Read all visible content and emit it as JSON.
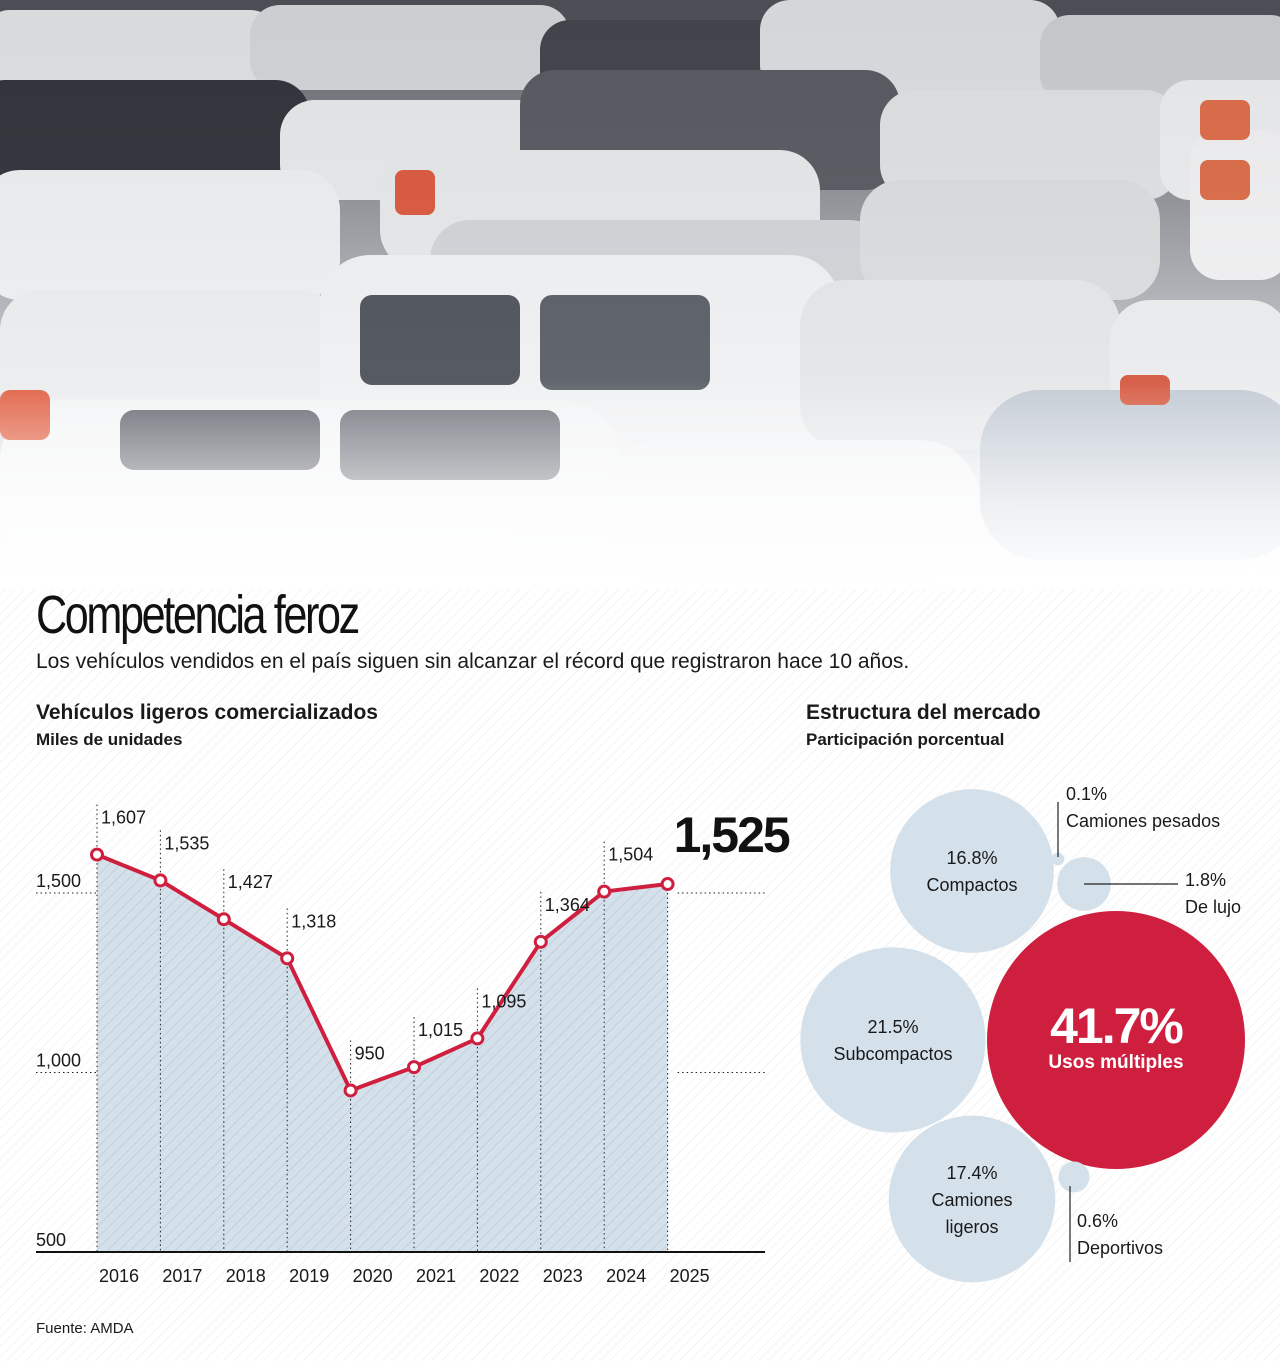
{
  "header": {
    "title": "Competencia feroz",
    "subtitle": "Los vehículos vendidos en el país siguen sin alcanzar el récord que registraron hace 10 años."
  },
  "line_chart": {
    "title": "Vehículos ligeros comercializados",
    "subtitle": "Miles de unidades"
  },
  "bubble_chart": {
    "title": "Estructura del mercado",
    "subtitle": "Participación porcentual"
  },
  "source": "Fuente: AMDA",
  "colors": {
    "line": "#cf1f3f",
    "area_fill": "#d4e0ea",
    "bubble": "#d4e0ea",
    "highlight_bubble": "#cf1f3f"
  },
  "chart_data": [
    {
      "type": "area",
      "title": "Vehículos ligeros comercializados",
      "ylabel": "Miles de unidades",
      "x": [
        "2016",
        "2017",
        "2018",
        "2019",
        "2020",
        "2021",
        "2022",
        "2023",
        "2024",
        "2025"
      ],
      "values": [
        1607,
        1535,
        1427,
        1318,
        950,
        1015,
        1095,
        1364,
        1504,
        1525
      ],
      "labels": [
        "1,607",
        "1,535",
        "1,427",
        "1,318",
        "950",
        "1,015",
        "1,095",
        "1,364",
        "1,504",
        "1,525"
      ],
      "yticks": [
        500,
        1000,
        1500
      ],
      "ytick_labels": [
        "500",
        "1,000",
        "1,500"
      ],
      "ylim": [
        500,
        1700
      ],
      "grid": false,
      "highlight_last": true
    },
    {
      "type": "bubble",
      "title": "Estructura del mercado",
      "ylabel": "Participación porcentual",
      "categories": [
        "Usos múltiples",
        "Subcompactos",
        "Camiones ligeros",
        "Compactos",
        "De lujo",
        "Deportivos",
        "Camiones pesados"
      ],
      "values": [
        41.7,
        21.5,
        17.4,
        16.8,
        1.8,
        0.6,
        0.1
      ],
      "value_labels": [
        "41.7%",
        "21.5%",
        "17.4%",
        "16.8%",
        "1.8%",
        "0.6%",
        "0.1%"
      ],
      "label_lines": [
        [
          "Usos múltiples"
        ],
        [
          "Subcompactos"
        ],
        [
          "Camiones",
          "ligeros"
        ],
        [
          "Compactos"
        ],
        [
          "De lujo"
        ],
        [
          "Deportivos"
        ],
        [
          "Camiones pesados"
        ]
      ],
      "highlight": "Usos múltiples"
    }
  ]
}
